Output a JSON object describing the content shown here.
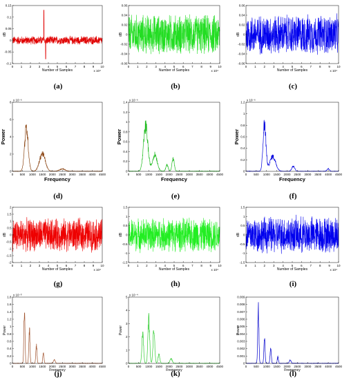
{
  "chart_data": [
    {
      "label": "(a)",
      "type": "line",
      "color": "#e00000",
      "amp": 0.02,
      "spikes": [
        {
          "x": 3.5,
          "v": 0.13
        },
        {
          "x": 3.7,
          "v": -0.08
        }
      ],
      "xlim": [
        0,
        10
      ],
      "ylim": [
        -0.1,
        0.15
      ],
      "xticks": [
        "0",
        "1",
        "2",
        "3",
        "4",
        "5",
        "6",
        "7",
        "8",
        "9",
        "10"
      ],
      "yticks": [
        {
          "v": -0.1,
          "t": "-0.1"
        },
        {
          "v": -0.05,
          "t": "-0.05"
        },
        {
          "v": 0,
          "t": "0"
        },
        {
          "v": 0.05,
          "t": "0.05"
        },
        {
          "v": 0.1,
          "t": "0.1"
        },
        {
          "v": 0.15,
          "t": "0.15"
        }
      ],
      "xlabel": "Number of Samples",
      "ylabel": "dB",
      "exp": "x 10⁴"
    },
    {
      "label": "(b)",
      "type": "line",
      "color": "#22dd22",
      "amp": 0.045,
      "spikes": [],
      "xlim": [
        0,
        10
      ],
      "ylim": [
        -0.06,
        0.06
      ],
      "xticks": [
        "0",
        "1",
        "2",
        "3",
        "4",
        "5",
        "6",
        "7",
        "8",
        "9",
        "10"
      ],
      "yticks": [
        {
          "v": -0.06,
          "t": "-0.06"
        },
        {
          "v": -0.04,
          "t": "-0.04"
        },
        {
          "v": -0.02,
          "t": "-0.02"
        },
        {
          "v": 0,
          "t": "0"
        },
        {
          "v": 0.02,
          "t": "0.02"
        },
        {
          "v": 0.04,
          "t": "0.04"
        },
        {
          "v": 0.06,
          "t": "0.06"
        }
      ],
      "xlabel": "Number of Samples",
      "ylabel": "dB",
      "exp": "x 10⁴"
    },
    {
      "label": "(c)",
      "type": "line",
      "color": "#0000ee",
      "amp": 0.045,
      "spikes": [],
      "xlim": [
        0,
        10
      ],
      "ylim": [
        -0.06,
        0.06
      ],
      "xticks": [
        "0",
        "1",
        "2",
        "3",
        "4",
        "5",
        "6",
        "7",
        "8",
        "9",
        "10"
      ],
      "yticks": [
        {
          "v": -0.06,
          "t": "-0.06"
        },
        {
          "v": -0.04,
          "t": "-0.04"
        },
        {
          "v": -0.02,
          "t": "-0.02"
        },
        {
          "v": 0,
          "t": "0"
        },
        {
          "v": 0.02,
          "t": "0.02"
        },
        {
          "v": 0.04,
          "t": "0.04"
        },
        {
          "v": 0.06,
          "t": "0.06"
        }
      ],
      "xlabel": "Number of Samples",
      "ylabel": "dB",
      "exp": "x 10⁴"
    },
    {
      "label": "(d)",
      "type": "spectrum",
      "color": "#8b4513",
      "peaks": [
        {
          "x": 700,
          "h": 5.8,
          "w": 130
        },
        {
          "x": 1500,
          "h": 2.4,
          "w": 200
        },
        {
          "x": 2500,
          "h": 0.3,
          "w": 200
        }
      ],
      "xlim": [
        0,
        4500
      ],
      "ylim": [
        0,
        8
      ],
      "xticks": [
        "0",
        "500",
        "1000",
        "1500",
        "2000",
        "2500",
        "3000",
        "3500",
        "4000",
        "4500"
      ],
      "yticks": [
        {
          "v": 0,
          "t": "0"
        },
        {
          "v": 2,
          "t": "2"
        },
        {
          "v": 4,
          "t": "4"
        },
        {
          "v": 6,
          "t": "6"
        },
        {
          "v": 8,
          "t": "8"
        }
      ],
      "xlabel": "Frequency",
      "ylabel": "Power",
      "exp": "x 10⁻⁶",
      "bigAxis": true
    },
    {
      "label": "(e)",
      "type": "spectrum",
      "color": "#22bb22",
      "peaks": [
        {
          "x": 850,
          "h": 1.05,
          "w": 150
        },
        {
          "x": 1300,
          "h": 0.4,
          "w": 160
        },
        {
          "x": 1900,
          "h": 0.15,
          "w": 80
        },
        {
          "x": 2200,
          "h": 0.3,
          "w": 80
        }
      ],
      "xlim": [
        0,
        4500
      ],
      "ylim": [
        0,
        1.4
      ],
      "xticks": [
        "0",
        "500",
        "1000",
        "1500",
        "2000",
        "2500",
        "3000",
        "3500",
        "4000",
        "4500"
      ],
      "yticks": [
        {
          "v": 0,
          "t": "0"
        },
        {
          "v": 0.2,
          "t": "0.2"
        },
        {
          "v": 0.4,
          "t": "0.4"
        },
        {
          "v": 0.6,
          "t": "0.6"
        },
        {
          "v": 0.8,
          "t": "0.8"
        },
        {
          "v": 1,
          "t": "1"
        },
        {
          "v": 1.2,
          "t": "1.2"
        },
        {
          "v": 1.4,
          "t": "1.4"
        }
      ],
      "xlabel": "Frequency",
      "ylabel": "Power",
      "exp": "x 10⁻⁶",
      "bigAxis": true
    },
    {
      "label": "(f)",
      "type": "spectrum",
      "color": "#0000dd",
      "peaks": [
        {
          "x": 900,
          "h": 0.95,
          "w": 100
        },
        {
          "x": 1300,
          "h": 0.3,
          "w": 200
        },
        {
          "x": 2300,
          "h": 0.1,
          "w": 100
        },
        {
          "x": 4000,
          "h": 0.05,
          "w": 80
        }
      ],
      "xlim": [
        0,
        4500
      ],
      "ylim": [
        0,
        1.2
      ],
      "xticks": [
        "0",
        "500",
        "1000",
        "1500",
        "2000",
        "2500",
        "3000",
        "3500",
        "4000",
        "4500"
      ],
      "yticks": [
        {
          "v": 0,
          "t": "0"
        },
        {
          "v": 0.2,
          "t": "0.2"
        },
        {
          "v": 0.4,
          "t": "0.4"
        },
        {
          "v": 0.6,
          "t": "0.6"
        },
        {
          "v": 0.8,
          "t": "0.8"
        },
        {
          "v": 1,
          "t": "1"
        },
        {
          "v": 1.2,
          "t": "1.2"
        }
      ],
      "xlabel": "Frequency",
      "ylabel": "Power",
      "exp": "x 10⁻⁶",
      "bigAxis": true
    },
    {
      "label": "(g)",
      "type": "line",
      "color": "#ee0000",
      "amp": 1.3,
      "spikes": [],
      "xlim": [
        0,
        10
      ],
      "ylim": [
        -2,
        2
      ],
      "xticks": [
        "0",
        "1",
        "2",
        "3",
        "4",
        "5",
        "6",
        "7",
        "8",
        "9",
        "10"
      ],
      "yticks": [
        {
          "v": -2,
          "t": "-2"
        },
        {
          "v": -1.5,
          "t": "-1.5"
        },
        {
          "v": -1,
          "t": "-1"
        },
        {
          "v": -0.5,
          "t": "-0.5"
        },
        {
          "v": 0,
          "t": "0"
        },
        {
          "v": 0.5,
          "t": "0.5"
        },
        {
          "v": 1,
          "t": "1"
        },
        {
          "v": 1.5,
          "t": "1.5"
        },
        {
          "v": 2,
          "t": "2"
        }
      ],
      "xlabel": "Number of Samples",
      "ylabel": "dB",
      "exp": "x 10⁴"
    },
    {
      "label": "(h)",
      "type": "line",
      "color": "#22ee22",
      "amp": 1.0,
      "spikes": [],
      "xlim": [
        0,
        10
      ],
      "ylim": [
        -1.5,
        1.5
      ],
      "xticks": [
        "0",
        "1",
        "2",
        "3",
        "4",
        "5",
        "6",
        "7",
        "8",
        "9",
        "10"
      ],
      "yticks": [
        {
          "v": -1.5,
          "t": "-1.5"
        },
        {
          "v": -1,
          "t": "-1"
        },
        {
          "v": -0.5,
          "t": "-0.5"
        },
        {
          "v": 0,
          "t": "0"
        },
        {
          "v": 0.5,
          "t": "0.5"
        },
        {
          "v": 1,
          "t": "1"
        },
        {
          "v": 1.5,
          "t": "1.5"
        }
      ],
      "xlabel": "Number of Samples",
      "ylabel": "dB",
      "exp": "x 10⁴"
    },
    {
      "label": "(i)",
      "type": "line",
      "color": "#0000ee",
      "amp": 1.1,
      "spikes": [],
      "xlim": [
        0,
        10
      ],
      "ylim": [
        -1.5,
        1.5
      ],
      "xticks": [
        "0",
        "1",
        "2",
        "3",
        "4",
        "5",
        "6",
        "7",
        "8",
        "9",
        "10"
      ],
      "yticks": [
        {
          "v": -1.5,
          "t": "-1.5"
        },
        {
          "v": -1,
          "t": "-1"
        },
        {
          "v": -0.5,
          "t": "-0.5"
        },
        {
          "v": 0,
          "t": "0"
        },
        {
          "v": 0.5,
          "t": "0.5"
        },
        {
          "v": 1,
          "t": "1"
        },
        {
          "v": 1.5,
          "t": "1.5"
        }
      ],
      "xlabel": "Number of Samples",
      "ylabel": "dB",
      "exp": "x 10⁴"
    },
    {
      "label": "(j)",
      "type": "spectrum",
      "color": "#a0522d",
      "peaks": [
        {
          "x": 600,
          "h": 1.7,
          "w": 40
        },
        {
          "x": 850,
          "h": 1.1,
          "w": 40
        },
        {
          "x": 1200,
          "h": 0.6,
          "w": 40
        },
        {
          "x": 1550,
          "h": 0.35,
          "w": 40
        },
        {
          "x": 2100,
          "h": 0.12,
          "w": 60
        }
      ],
      "xlim": [
        0,
        4500
      ],
      "ylim": [
        0,
        1.8
      ],
      "xticks": [
        "0",
        "500",
        "1000",
        "1500",
        "2000",
        "2500",
        "3000",
        "3500",
        "4000",
        "4500"
      ],
      "yticks": [
        {
          "v": 0,
          "t": "0"
        },
        {
          "v": 0.2,
          "t": "0.2"
        },
        {
          "v": 0.4,
          "t": "0.4"
        },
        {
          "v": 0.6,
          "t": "0.6"
        },
        {
          "v": 0.8,
          "t": "0.8"
        },
        {
          "v": 1,
          "t": "1"
        },
        {
          "v": 1.2,
          "t": "1.2"
        },
        {
          "v": 1.4,
          "t": "1.4"
        },
        {
          "v": 1.6,
          "t": "1.6"
        },
        {
          "v": 1.8,
          "t": "1.8"
        }
      ],
      "xlabel": "Frequency",
      "ylabel": "Power",
      "exp": "x 10⁻³",
      "bigAxis": false
    },
    {
      "label": "(k)",
      "type": "spectrum",
      "color": "#33cc33",
      "peaks": [
        {
          "x": 700,
          "h": 2.5,
          "w": 60
        },
        {
          "x": 1000,
          "h": 4.0,
          "w": 60
        },
        {
          "x": 1250,
          "h": 3.0,
          "w": 60
        },
        {
          "x": 1500,
          "h": 0.8,
          "w": 60
        },
        {
          "x": 2100,
          "h": 0.4,
          "w": 80
        }
      ],
      "xlim": [
        0,
        4500
      ],
      "ylim": [
        0,
        5
      ],
      "xticks": [
        "0",
        "500",
        "1000",
        "1500",
        "2000",
        "2500",
        "3000",
        "3500",
        "4000",
        "4500"
      ],
      "yticks": [
        {
          "v": 0,
          "t": "0"
        },
        {
          "v": 1,
          "t": "1"
        },
        {
          "v": 2,
          "t": "2"
        },
        {
          "v": 3,
          "t": "3"
        },
        {
          "v": 4,
          "t": "4"
        },
        {
          "v": 5,
          "t": "5"
        }
      ],
      "xlabel": "Frequency",
      "ylabel": "Power",
      "exp": "x 10⁻⁴",
      "bigAxis": false
    },
    {
      "label": "(l)",
      "type": "spectrum",
      "color": "#0000cc",
      "peaks": [
        {
          "x": 600,
          "h": 0.0085,
          "w": 40
        },
        {
          "x": 900,
          "h": 0.0038,
          "w": 40
        },
        {
          "x": 1200,
          "h": 0.0025,
          "w": 40
        },
        {
          "x": 1550,
          "h": 0.001,
          "w": 40
        },
        {
          "x": 2150,
          "h": 0.0005,
          "w": 60
        }
      ],
      "xlim": [
        0,
        4500
      ],
      "ylim": [
        0,
        0.009
      ],
      "xticks": [
        "0",
        "500",
        "1000",
        "1500",
        "2000",
        "2500",
        "3000",
        "3500",
        "4000",
        "4500"
      ],
      "yticks": [
        {
          "v": 0,
          "t": "0"
        },
        {
          "v": 0.001,
          "t": "0.001"
        },
        {
          "v": 0.002,
          "t": "0.002"
        },
        {
          "v": 0.003,
          "t": "0.003"
        },
        {
          "v": 0.004,
          "t": "0.004"
        },
        {
          "v": 0.005,
          "t": "0.005"
        },
        {
          "v": 0.006,
          "t": "0.006"
        },
        {
          "v": 0.007,
          "t": "0.007"
        },
        {
          "v": 0.008,
          "t": "0.008"
        },
        {
          "v": 0.009,
          "t": "0.009"
        }
      ],
      "xlabel": "Frequency",
      "ylabel": "Power",
      "exp": "",
      "bigAxis": false
    }
  ]
}
